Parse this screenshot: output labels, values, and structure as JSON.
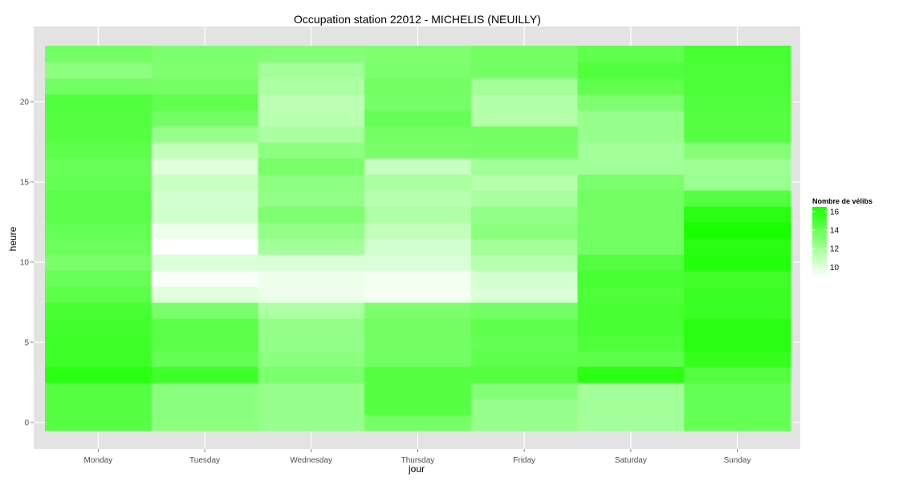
{
  "chart_data": {
    "type": "heatmap",
    "title": "Occupation station 22012 - MICHELIS (NEUILLY)",
    "xlabel": "jour",
    "ylabel": "heure",
    "categories": [
      "Monday",
      "Tuesday",
      "Wednesday",
      "Thursday",
      "Friday",
      "Saturday",
      "Sunday"
    ],
    "hours": [
      0,
      1,
      2,
      3,
      4,
      5,
      6,
      7,
      8,
      9,
      10,
      11,
      12,
      13,
      14,
      15,
      16,
      17,
      18,
      19,
      20,
      21,
      22,
      23
    ],
    "y_ticks": [
      0,
      5,
      10,
      15,
      20
    ],
    "ylim": [
      -0.5,
      23.5
    ],
    "legend": {
      "title": "Nombre de vélibs",
      "ticks": [
        10,
        12,
        14,
        16
      ],
      "range": [
        9,
        16.5
      ],
      "position": "right",
      "low_color": "#ffffff",
      "high_color": "#1aff00"
    },
    "grid": true,
    "panel_background": "#e3e3e3",
    "values": [
      [
        14.5,
        14.5,
        14.5,
        16.0,
        15.3,
        15.3,
        15.2,
        15.0,
        14.3,
        13.9,
        13.4,
        13.8,
        14.0,
        14.3,
        14.3,
        14.0,
        13.9,
        14.3,
        14.5,
        14.6,
        14.7,
        13.6,
        12.7,
        13.6
      ],
      [
        12.8,
        12.8,
        12.8,
        15.3,
        14.0,
        14.4,
        14.4,
        13.4,
        10.0,
        9.2,
        10.2,
        9.0,
        9.6,
        10.5,
        10.4,
        10.8,
        10.0,
        11.0,
        12.4,
        13.6,
        14.2,
        13.5,
        13.2,
        13.3
      ],
      [
        12.4,
        12.4,
        12.4,
        13.3,
        12.8,
        12.5,
        12.5,
        11.7,
        9.6,
        9.6,
        10.2,
        12.0,
        12.5,
        13.2,
        12.5,
        12.7,
        13.4,
        12.7,
        11.8,
        11.3,
        11.2,
        11.7,
        12.0,
        13.1
      ],
      [
        13.5,
        14.5,
        14.5,
        14.5,
        13.6,
        13.6,
        13.6,
        13.3,
        9.4,
        9.4,
        10.2,
        10.4,
        11.0,
        11.6,
        11.3,
        11.8,
        10.8,
        13.4,
        13.6,
        14.0,
        13.5,
        13.6,
        13.3,
        13.2
      ],
      [
        12.4,
        12.4,
        13.0,
        14.6,
        14.2,
        14.0,
        14.2,
        13.6,
        10.2,
        10.4,
        11.4,
        12.0,
        12.8,
        12.6,
        11.8,
        11.4,
        12.1,
        13.5,
        13.6,
        11.5,
        11.5,
        12.0,
        13.6,
        13.6
      ],
      [
        12.0,
        12.0,
        12.0,
        16.0,
        14.3,
        14.8,
        15.0,
        15.0,
        14.8,
        15.0,
        14.6,
        13.6,
        13.6,
        13.6,
        13.6,
        13.3,
        12.0,
        12.0,
        12.4,
        12.4,
        13.2,
        14.2,
        14.7,
        14.2
      ],
      [
        14.0,
        14.0,
        14.0,
        14.6,
        15.6,
        16.0,
        16.0,
        15.4,
        15.4,
        15.2,
        16.2,
        16.0,
        16.5,
        16.0,
        14.6,
        12.3,
        12.2,
        13.0,
        14.5,
        14.5,
        14.7,
        14.9,
        14.9,
        15.0
      ]
    ]
  }
}
